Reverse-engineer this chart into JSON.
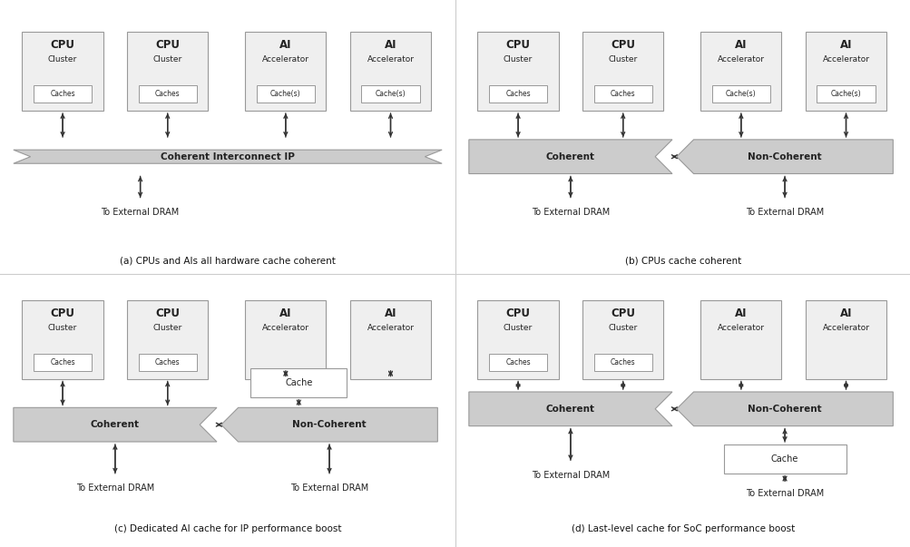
{
  "bg_color": "#ffffff",
  "box_fill": "#efefef",
  "box_edge": "#999999",
  "banner_fill": "#cccccc",
  "banner_edge": "#999999",
  "plain_box_fill": "#ffffff",
  "plain_box_edge": "#999999",
  "text_dark": "#222222",
  "arrow_color": "#333333",
  "divider_color": "#cccccc",
  "diagrams": [
    {
      "id": "a",
      "caption": "(a) CPUs and AIs all hardware cache coherent",
      "top_boxes": [
        {
          "label1": "CPU",
          "label2": "Cluster",
          "inner": "Caches"
        },
        {
          "label1": "CPU",
          "label2": "Cluster",
          "inner": "Caches"
        },
        {
          "label1": "AI",
          "label2": "Accelerator",
          "inner": "Cache(s)"
        },
        {
          "label1": "AI",
          "label2": "Accelerator",
          "inner": "Cache(s)"
        }
      ],
      "banner1": {
        "label": "Coherent Interconnect IP",
        "type": "full"
      },
      "dram1": "To External DRAM",
      "banner2": null,
      "dram2": null,
      "mid_cache": null,
      "bot_cache": null
    },
    {
      "id": "b",
      "caption": "(b) CPUs cache coherent",
      "top_boxes": [
        {
          "label1": "CPU",
          "label2": "Cluster",
          "inner": "Caches"
        },
        {
          "label1": "CPU",
          "label2": "Cluster",
          "inner": "Caches"
        },
        {
          "label1": "AI",
          "label2": "Accelerator",
          "inner": "Cache(s)"
        },
        {
          "label1": "AI",
          "label2": "Accelerator",
          "inner": "Cache(s)"
        }
      ],
      "banner1": {
        "label": "Coherent",
        "type": "left_half"
      },
      "dram1": "To External DRAM",
      "banner2": {
        "label": "Non-Coherent",
        "type": "right_half"
      },
      "dram2": "To External DRAM",
      "mid_cache": null,
      "bot_cache": null
    },
    {
      "id": "c",
      "caption": "(c) Dedicated AI cache for IP performance boost",
      "top_boxes": [
        {
          "label1": "CPU",
          "label2": "Cluster",
          "inner": "Caches"
        },
        {
          "label1": "CPU",
          "label2": "Cluster",
          "inner": "Caches"
        },
        {
          "label1": "AI",
          "label2": "Accelerator",
          "inner": null
        },
        {
          "label1": "AI",
          "label2": "Accelerator",
          "inner": null
        }
      ],
      "banner1": {
        "label": "Coherent",
        "type": "left_half"
      },
      "dram1": "To External DRAM",
      "banner2": {
        "label": "Non-Coherent",
        "type": "right_half"
      },
      "dram2": "To External DRAM",
      "mid_cache": "Cache",
      "bot_cache": null
    },
    {
      "id": "d",
      "caption": "(d) Last-level cache for SoC performance boost",
      "top_boxes": [
        {
          "label1": "CPU",
          "label2": "Cluster",
          "inner": "Caches"
        },
        {
          "label1": "CPU",
          "label2": "Cluster",
          "inner": "Caches"
        },
        {
          "label1": "AI",
          "label2": "Accelerator",
          "inner": null
        },
        {
          "label1": "AI",
          "label2": "Accelerator",
          "inner": null
        }
      ],
      "banner1": {
        "label": "Coherent",
        "type": "left_half"
      },
      "dram1": "To External DRAM",
      "banner2": {
        "label": "Non-Coherent",
        "type": "right_half"
      },
      "dram2": "To External DRAM",
      "mid_cache": null,
      "bot_cache": "Cache"
    }
  ]
}
